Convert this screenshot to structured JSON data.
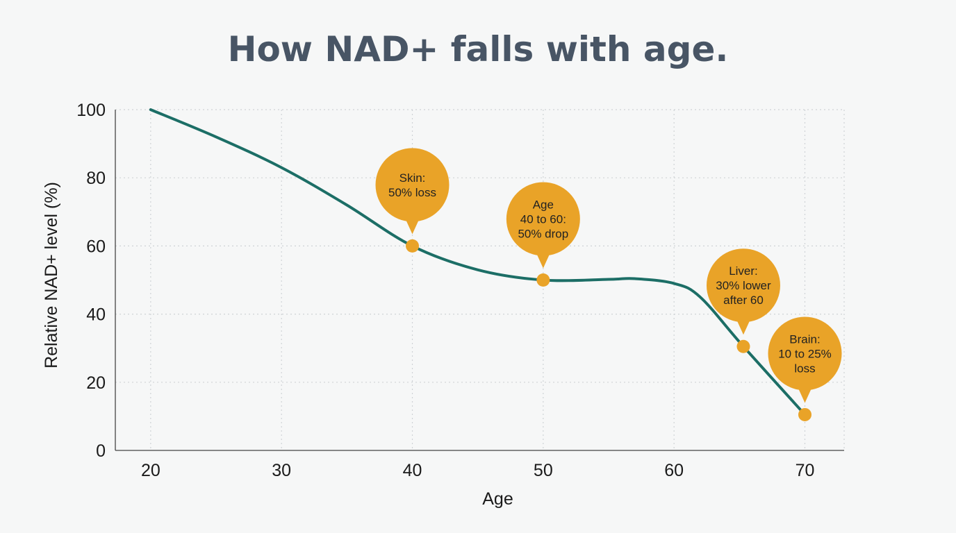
{
  "chart_data": {
    "type": "line",
    "title": "How NAD+ falls with age.",
    "xlabel": "Age",
    "ylabel": "Relative NAD+ level (%)",
    "xlim": [
      17.3,
      73
    ],
    "ylim": [
      0,
      100
    ],
    "xticks": [
      20,
      30,
      40,
      50,
      60,
      70
    ],
    "yticks": [
      0,
      20,
      40,
      60,
      80,
      100
    ],
    "grid": true,
    "colors": {
      "line": "#1c6e66",
      "marker": "#e9a328",
      "callout": "#e9a328",
      "title": "#485565"
    },
    "series": [
      {
        "x": [
          20,
          25,
          30,
          35,
          40,
          45,
          50,
          55,
          57,
          60,
          62,
          65.3,
          70
        ],
        "y": [
          100,
          92,
          83,
          72,
          60,
          53,
          50,
          50.2,
          50.4,
          49,
          45,
          30.5,
          10.5
        ]
      }
    ],
    "annotations": [
      {
        "x": 40,
        "y": 60,
        "lines": [
          "Skin:",
          "50% loss"
        ]
      },
      {
        "x": 50,
        "y": 50,
        "lines": [
          "Age",
          "40 to 60:",
          "50% drop"
        ]
      },
      {
        "x": 65.3,
        "y": 30.5,
        "lines": [
          "Liver:",
          "30% lower",
          "after 60"
        ]
      },
      {
        "x": 70,
        "y": 10.5,
        "lines": [
          "Brain:",
          "10 to 25%",
          "loss"
        ]
      }
    ]
  }
}
